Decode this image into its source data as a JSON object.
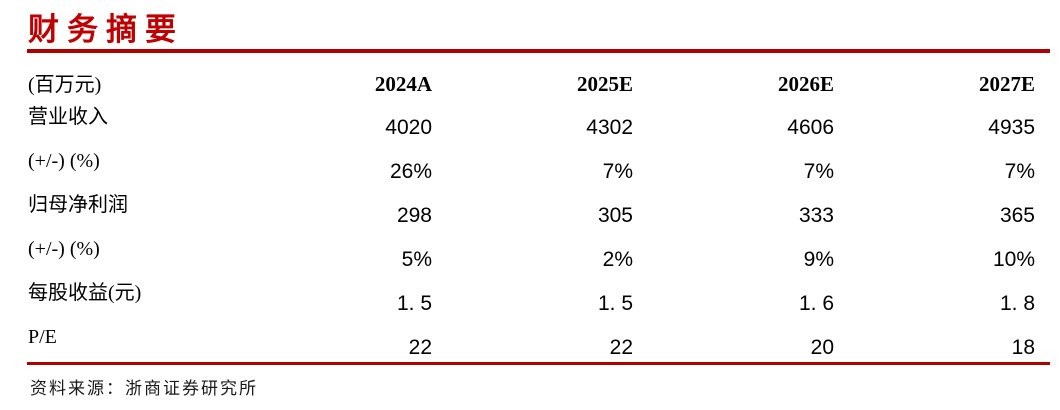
{
  "title": "财务摘要",
  "colors": {
    "title_red": "#C00000",
    "rule_red": "#B00000"
  },
  "table": {
    "unit_label": "(百万元)",
    "columns": [
      "2024A",
      "2025E",
      "2026E",
      "2027E"
    ],
    "rows": [
      {
        "label": "营业收入",
        "values": [
          "4020",
          "4302",
          "4606",
          "4935"
        ]
      },
      {
        "label": "(+/-) (%)",
        "values": [
          "26%",
          "7%",
          "7%",
          "7%"
        ]
      },
      {
        "label": "归母净利润",
        "values": [
          "298",
          "305",
          "333",
          "365"
        ]
      },
      {
        "label": "(+/-) (%)",
        "values": [
          "5%",
          "2%",
          "9%",
          "10%"
        ]
      },
      {
        "label": "每股收益(元)",
        "values": [
          "1. 5",
          "1. 5",
          "1. 6",
          "1. 8"
        ]
      },
      {
        "label": "P/E",
        "values": [
          "22",
          "22",
          "20",
          "18"
        ]
      }
    ]
  },
  "footer": {
    "source": "资料来源：浙商证券研究所"
  }
}
